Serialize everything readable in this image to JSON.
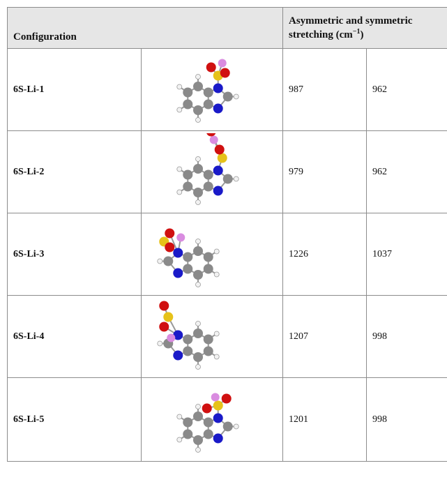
{
  "table": {
    "header": {
      "configuration": "Configuration",
      "stretching": {
        "text": "Asymmetric and symmetric stretching (cm",
        "sup": "−1",
        "after": ")"
      }
    },
    "rows": [
      [
        "6S-Li-1",
        987,
        962
      ],
      [
        "6S-Li-2",
        979,
        962
      ],
      [
        "6S-Li-3",
        1226,
        1037
      ],
      [
        "6S-Li-4",
        1207,
        998
      ],
      [
        "6S-Li-5",
        1201,
        998
      ]
    ]
  }
}
